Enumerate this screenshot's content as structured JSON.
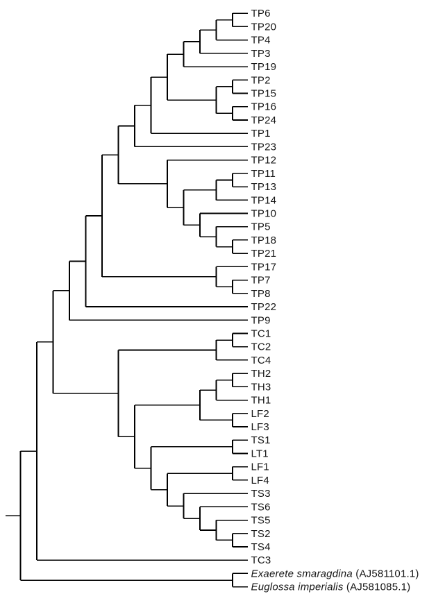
{
  "figure": {
    "kind": "phylogenetic-cladogram",
    "background_color": "#ffffff",
    "branch_color": "#000000",
    "label_color": "#161616"
  },
  "taxa_order": [
    "TP6",
    "TP20",
    "TP4",
    "TP3",
    "TP19",
    "TP2",
    "TP15",
    "TP16",
    "TP24",
    "TP1",
    "TP23",
    "TP12",
    "TP11",
    "TP13",
    "TP14",
    "TP10",
    "TP5",
    "TP18",
    "TP21",
    "TP17",
    "TP7",
    "TP8",
    "TP22",
    "TP9",
    "TC1",
    "TC2",
    "TC4",
    "TH2",
    "TH3",
    "TH1",
    "LF2",
    "LF3",
    "TS1",
    "LT1",
    "LF1",
    "LF4",
    "TS3",
    "TS6",
    "TS5",
    "TS2",
    "TS4",
    "TC3",
    "Exaerete smaragdina (AJ581101.1)",
    "Euglossa imperialis (AJ581085.1)"
  ],
  "tree": {
    "c": [
      {
        "c": [
          {
            "c": [
              {
                "c": [
                  {
                    "c": [
                      {
                        "c": [
                          {
                            "c": [
                              {
                                "c": [
                                  {
                                    "c": [
                                      {
                                        "c": [
                                          {
                                            "c": [
                                              {
                                                "c": [
                                                  {
                                                    "c": [
                                                      {
                                                        "c": [
                                                          {
                                                            "t": "TP6"
                                                          },
                                                          {
                                                            "t": "TP20"
                                                          }
                                                        ]
                                                      },
                                                      {
                                                        "t": "TP4"
                                                      }
                                                    ]
                                                  },
                                                  {
                                                    "t": "TP3"
                                                  }
                                                ]
                                              },
                                              {
                                                "t": "TP19"
                                              }
                                            ]
                                          },
                                          {
                                            "c": [
                                              {
                                                "c": [
                                                  {
                                                    "t": "TP2"
                                                  },
                                                  {
                                                    "t": "TP15"
                                                  }
                                                ]
                                              },
                                              {
                                                "c": [
                                                  {
                                                    "t": "TP16"
                                                  },
                                                  {
                                                    "t": "TP24"
                                                  }
                                                ]
                                              }
                                            ]
                                          }
                                        ]
                                      },
                                      {
                                        "t": "TP1"
                                      }
                                    ]
                                  },
                                  {
                                    "t": "TP23"
                                  }
                                ]
                              },
                              {
                                "c": [
                                  {
                                    "t": "TP12"
                                  },
                                  {
                                    "c": [
                                      {
                                        "c": [
                                          {
                                            "c": [
                                              {
                                                "t": "TP11"
                                              },
                                              {
                                                "t": "TP13"
                                              }
                                            ]
                                          },
                                          {
                                            "t": "TP14"
                                          }
                                        ]
                                      },
                                      {
                                        "c": [
                                          {
                                            "t": "TP10"
                                          },
                                          {
                                            "c": [
                                              {
                                                "t": "TP5"
                                              },
                                              {
                                                "c": [
                                                  {
                                                    "t": "TP18"
                                                  },
                                                  {
                                                    "t": "TP21"
                                                  }
                                                ]
                                              }
                                            ]
                                          }
                                        ]
                                      }
                                    ]
                                  }
                                ]
                              }
                            ]
                          },
                          {
                            "c": [
                              {
                                "t": "TP17"
                              },
                              {
                                "c": [
                                  {
                                    "t": "TP7"
                                  },
                                  {
                                    "t": "TP8"
                                  }
                                ]
                              }
                            ]
                          }
                        ]
                      },
                      {
                        "t": "TP22"
                      }
                    ]
                  },
                  {
                    "t": "TP9"
                  }
                ]
              },
              {
                "c": [
                  {
                    "c": [
                      {
                        "c": [
                          {
                            "t": "TC1"
                          },
                          {
                            "t": "TC2"
                          }
                        ]
                      },
                      {
                        "t": "TC4"
                      }
                    ]
                  },
                  {
                    "c": [
                      {
                        "c": [
                          {
                            "c": [
                              {
                                "c": [
                                  {
                                    "t": "TH2"
                                  },
                                  {
                                    "t": "TH3"
                                  }
                                ]
                              },
                              {
                                "t": "TH1"
                              }
                            ]
                          },
                          {
                            "c": [
                              {
                                "t": "LF2"
                              },
                              {
                                "t": "LF3"
                              }
                            ]
                          }
                        ]
                      },
                      {
                        "c": [
                          {
                            "c": [
                              {
                                "t": "TS1"
                              },
                              {
                                "t": "LT1"
                              }
                            ]
                          },
                          {
                            "c": [
                              {
                                "c": [
                                  {
                                    "t": "LF1"
                                  },
                                  {
                                    "t": "LF4"
                                  }
                                ]
                              },
                              {
                                "c": [
                                  {
                                    "t": "TS3"
                                  },
                                  {
                                    "c": [
                                      {
                                        "t": "TS6"
                                      },
                                      {
                                        "c": [
                                          {
                                            "t": "TS5"
                                          },
                                          {
                                            "c": [
                                              {
                                                "t": "TS2"
                                              },
                                              {
                                                "t": "TS4"
                                              }
                                            ]
                                          }
                                        ]
                                      }
                                    ]
                                  }
                                ]
                              }
                            ]
                          }
                        ]
                      }
                    ]
                  }
                ]
              }
            ]
          },
          {
            "t": "TC3"
          }
        ]
      },
      {
        "c": [
          {
            "t": "Exaerete smaragdina",
            "suffix": " (AJ581101.1)",
            "italic": true
          },
          {
            "t": "Euglossa imperialis",
            "suffix": " (AJ581085.1)",
            "italic": true
          }
        ]
      }
    ]
  }
}
